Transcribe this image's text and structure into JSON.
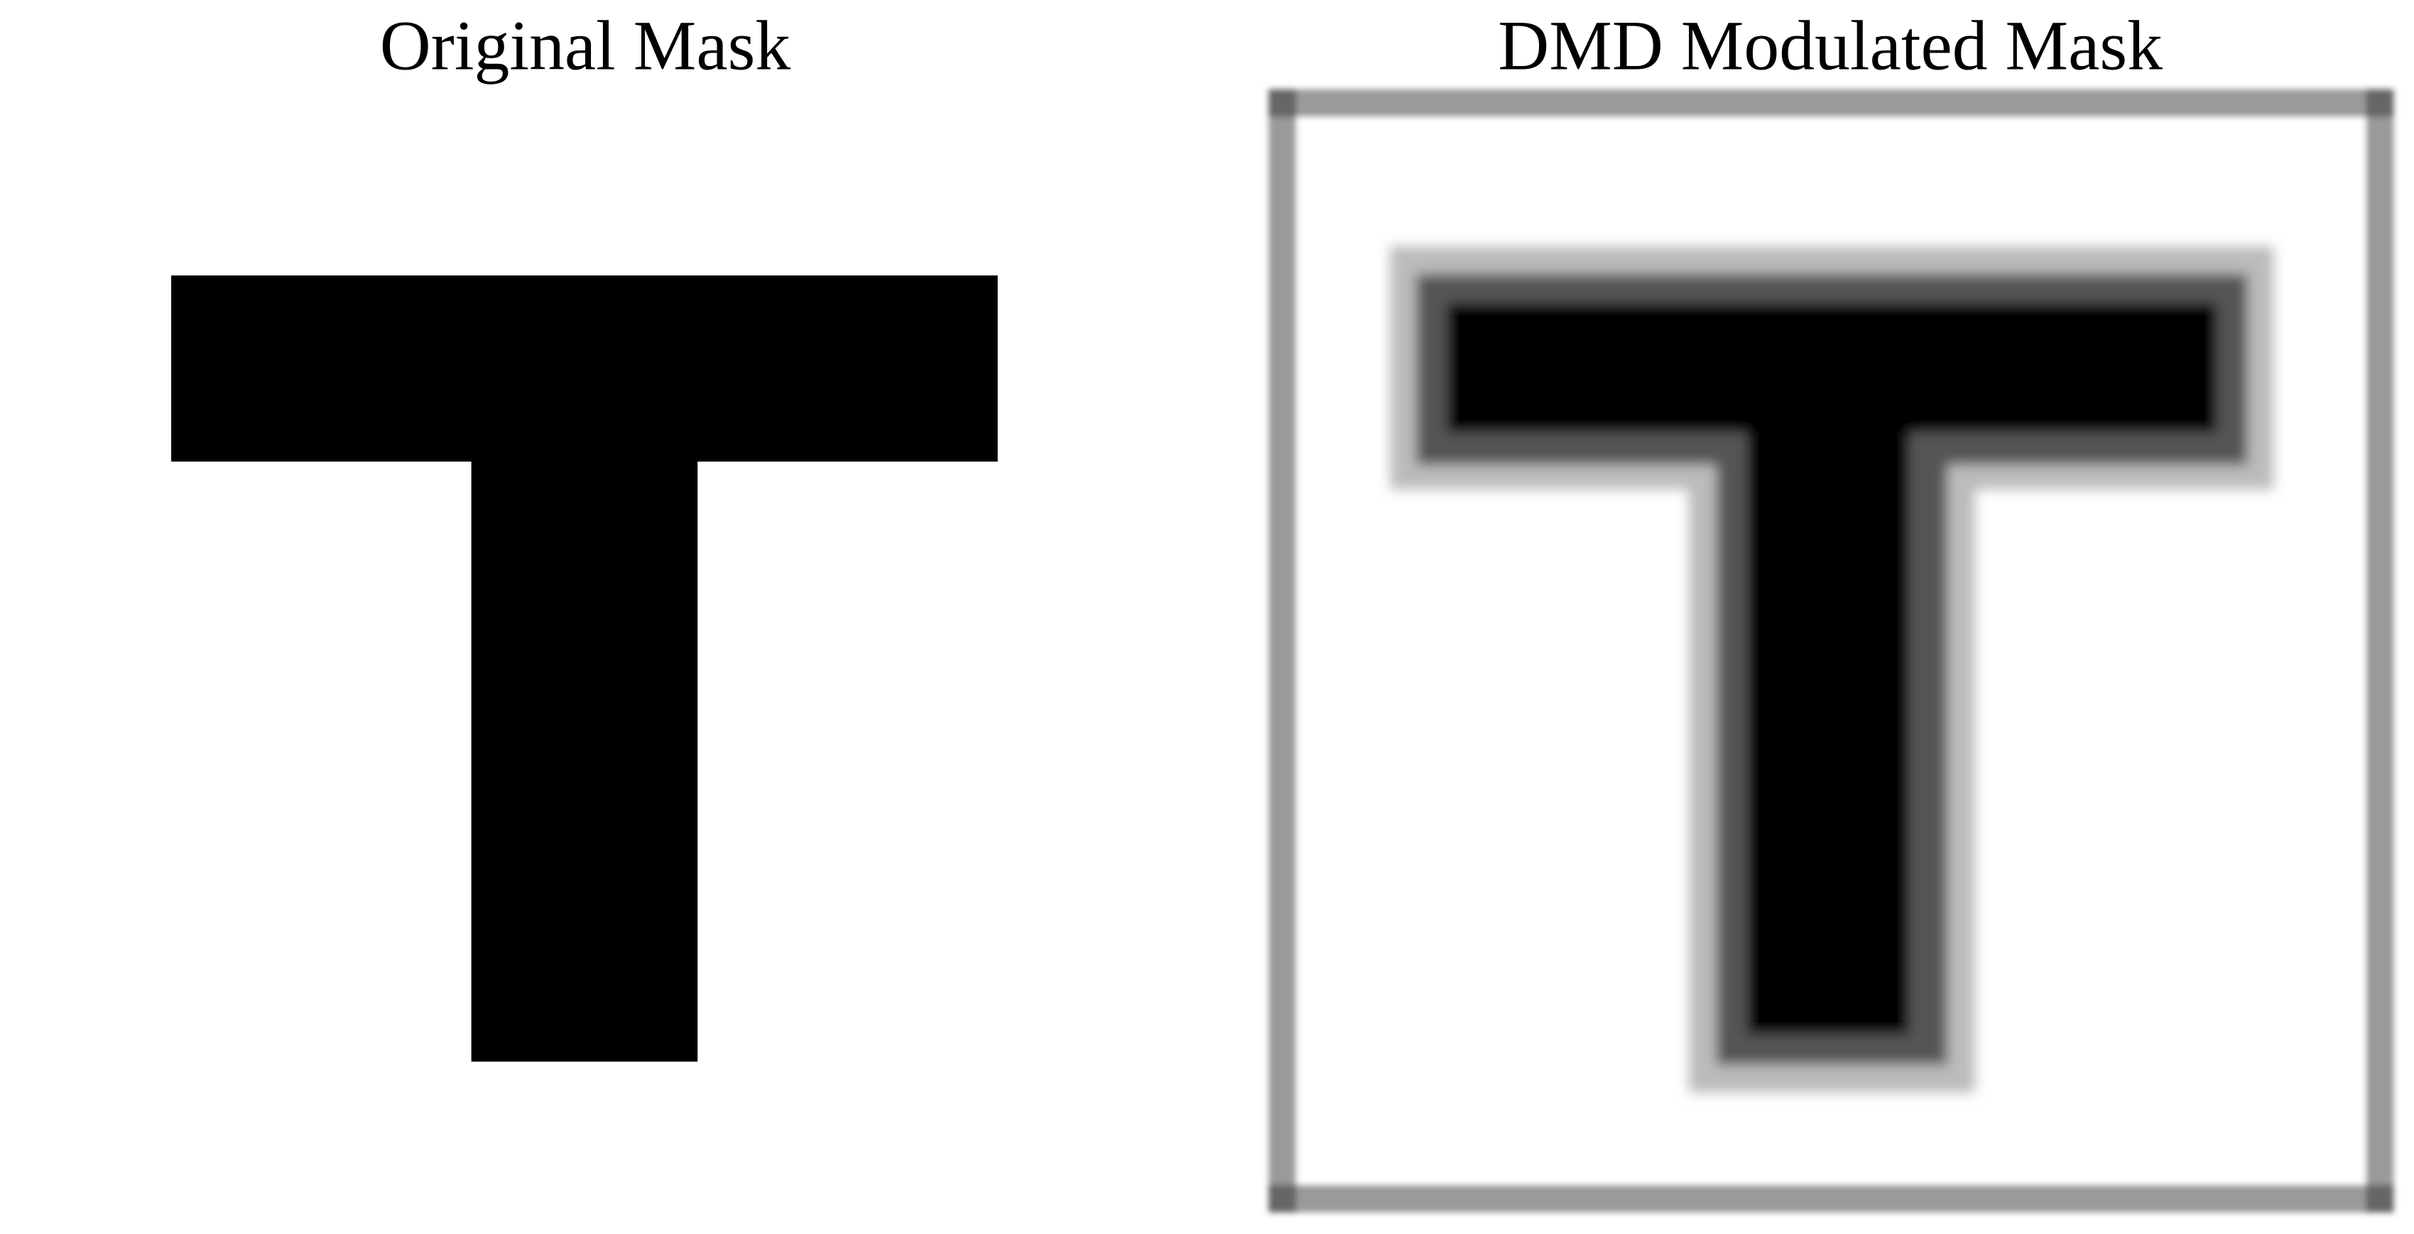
{
  "panels": [
    {
      "title": "Original Mask"
    },
    {
      "title": "DMD Modulated Mask"
    }
  ]
}
